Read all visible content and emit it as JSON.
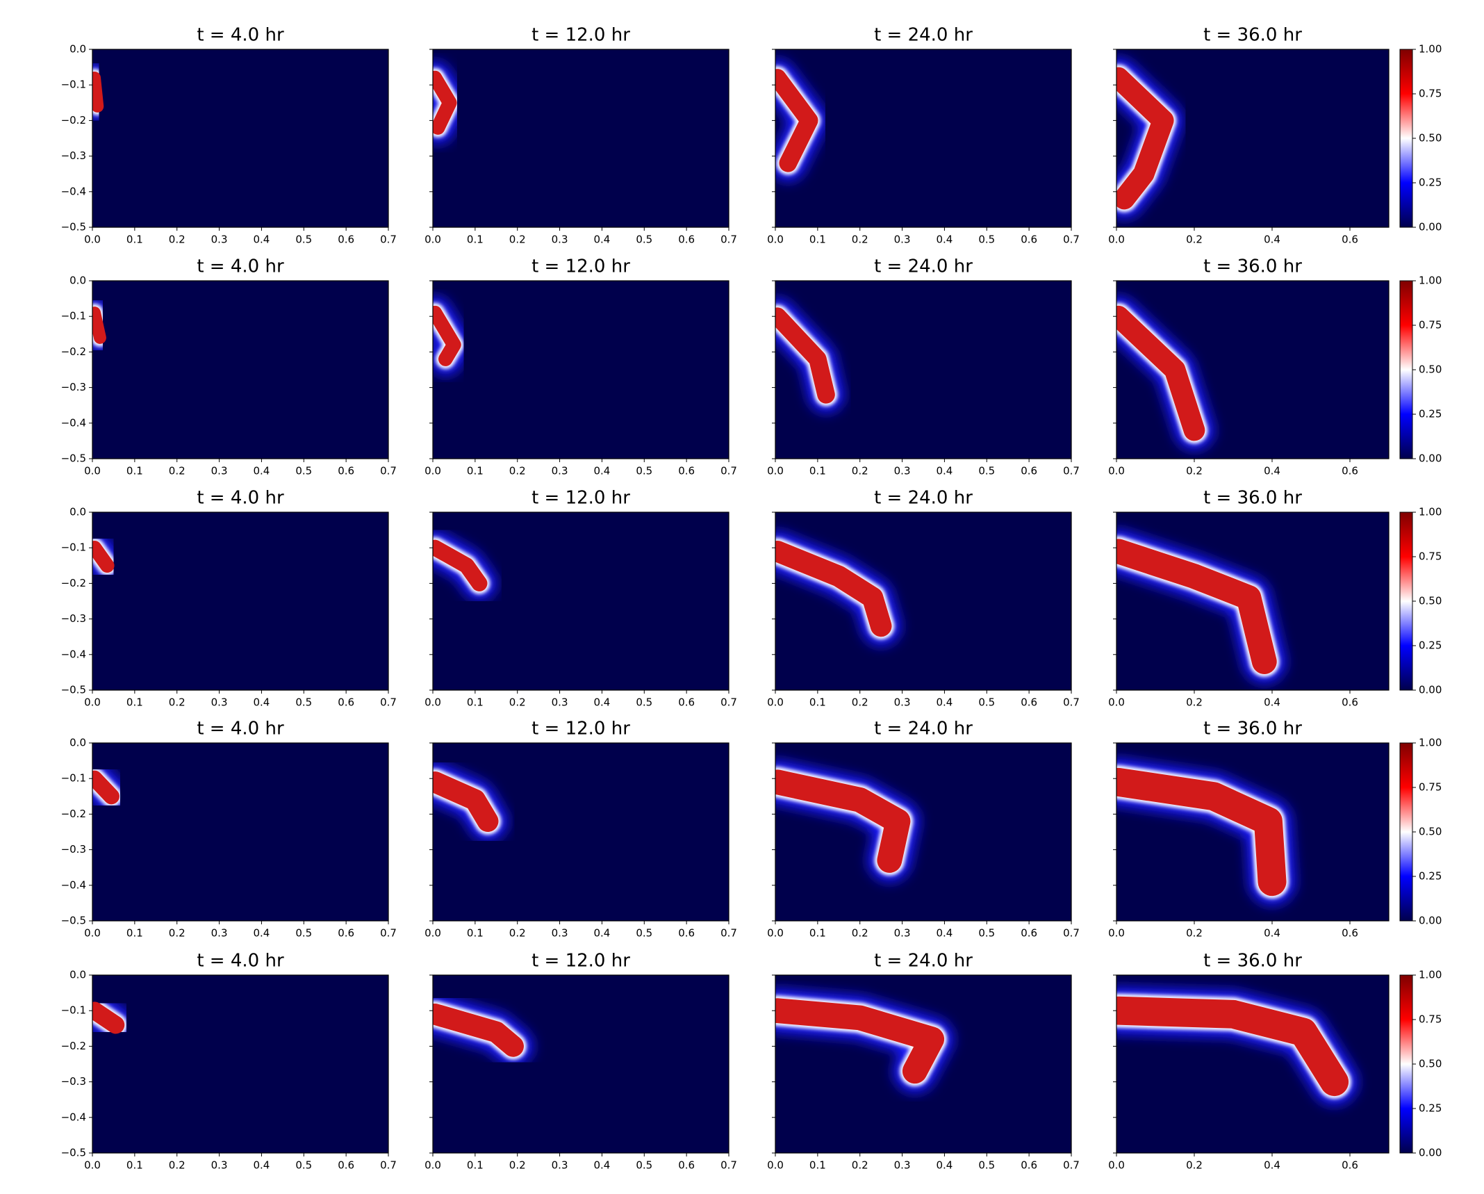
{
  "chart_data": [
    {
      "type": "heatmap",
      "title": "t = 4.0 hr",
      "xlim": [
        0,
        0.7
      ],
      "ylim": [
        -0.5,
        0
      ],
      "xticks": [
        {
          "value": 0,
          "label": "0.0"
        },
        0.1,
        0.2,
        0.3,
        0.4,
        0.5,
        0.6,
        0.7
      ],
      "yticks": [
        {
          "value": 0,
          "label": "0.0"
        },
        {
          "value": -0.1,
          "label": "−0.1"
        },
        {
          "value": -0.2,
          "label": "−0.2"
        },
        {
          "value": -0.3,
          "label": "−0.3"
        },
        {
          "value": -0.4,
          "label": "−0.4"
        },
        {
          "value": -0.5,
          "label": "−0.5"
        }
      ]
    },
    {
      "type": "heatmap",
      "title": "t = 12.0 hr",
      "xlim": [
        0,
        0.7
      ],
      "ylim": [
        -0.5,
        0
      ],
      "xticks": [
        {
          "value": 0,
          "label": "0.0"
        },
        0.1,
        0.2,
        0.3,
        0.4,
        0.5,
        0.6,
        0.7
      ],
      "yticks": [
        0,
        -0.1,
        -0.2,
        -0.3,
        -0.4,
        -0.5
      ]
    },
    {
      "type": "heatmap",
      "title": "t = 24.0 hr",
      "xlim": [
        0,
        0.7
      ],
      "ylim": [
        -0.5,
        0
      ],
      "xticks": [
        {
          "value": 0,
          "label": "0.0"
        },
        0.1,
        0.2,
        0.3,
        0.4,
        0.5,
        0.6,
        0.7
      ],
      "yticks": [
        0,
        -0.1,
        -0.2,
        -0.3,
        -0.4,
        -0.5
      ]
    },
    {
      "type": "heatmap",
      "title": "t = 36.0 hr",
      "xlim": [
        0,
        0.7
      ],
      "ylim": [
        -0.5,
        0
      ],
      "xticks": [
        {
          "value": 0,
          "label": "0.0"
        },
        0.2,
        0.4,
        0.6
      ],
      "yticks": [
        0,
        -0.1,
        -0.2,
        -0.3,
        -0.4,
        -0.5
      ],
      "colorbar": {
        "clim": [
          0,
          1
        ],
        "ticks": [
          {
            "value": 0,
            "label": "0.00"
          },
          0.25,
          {
            "value": 0.5,
            "label": "0.50"
          },
          0.75,
          {
            "value": 1,
            "label": "1.00"
          }
        ]
      }
    },
    {
      "type": "heatmap",
      "title": "t = 4.0 hr",
      "xlim": [
        0,
        0.7
      ],
      "ylim": [
        -0.5,
        0
      ],
      "xticks": [
        {
          "value": 0,
          "label": "0.0"
        },
        0.1,
        0.2,
        0.3,
        0.4,
        0.5,
        0.6,
        0.7
      ],
      "yticks": [
        {
          "value": 0,
          "label": "0.0"
        },
        {
          "value": -0.1,
          "label": "−0.1"
        },
        {
          "value": -0.2,
          "label": "−0.2"
        },
        {
          "value": -0.3,
          "label": "−0.3"
        },
        {
          "value": -0.4,
          "label": "−0.4"
        },
        {
          "value": -0.5,
          "label": "−0.5"
        }
      ]
    },
    {
      "type": "heatmap",
      "title": "t = 12.0 hr",
      "xlim": [
        0,
        0.7
      ],
      "ylim": [
        -0.5,
        0
      ],
      "xticks": [
        {
          "value": 0,
          "label": "0.0"
        },
        0.1,
        0.2,
        0.3,
        0.4,
        0.5,
        0.6,
        0.7
      ],
      "yticks": [
        0,
        -0.1,
        -0.2,
        -0.3,
        -0.4,
        -0.5
      ]
    },
    {
      "type": "heatmap",
      "title": "t = 24.0 hr",
      "xlim": [
        0,
        0.7
      ],
      "ylim": [
        -0.5,
        0
      ],
      "xticks": [
        {
          "value": 0,
          "label": "0.0"
        },
        0.1,
        0.2,
        0.3,
        0.4,
        0.5,
        0.6,
        0.7
      ],
      "yticks": [
        0,
        -0.1,
        -0.2,
        -0.3,
        -0.4,
        -0.5
      ]
    },
    {
      "type": "heatmap",
      "title": "t = 36.0 hr",
      "xlim": [
        0,
        0.7
      ],
      "ylim": [
        -0.5,
        0
      ],
      "xticks": [
        {
          "value": 0,
          "label": "0.0"
        },
        0.2,
        0.4,
        0.6
      ],
      "yticks": [
        0,
        -0.1,
        -0.2,
        -0.3,
        -0.4,
        -0.5
      ],
      "colorbar": {
        "clim": [
          0,
          1
        ],
        "ticks": [
          {
            "value": 0,
            "label": "0.00"
          },
          0.25,
          {
            "value": 0.5,
            "label": "0.50"
          },
          0.75,
          {
            "value": 1,
            "label": "1.00"
          }
        ]
      }
    },
    {
      "type": "heatmap",
      "title": "t = 4.0 hr",
      "xlim": [
        0,
        0.7
      ],
      "ylim": [
        -0.5,
        0
      ],
      "xticks": [
        {
          "value": 0,
          "label": "0.0"
        },
        0.1,
        0.2,
        0.3,
        0.4,
        0.5,
        0.6,
        0.7
      ],
      "yticks": [
        {
          "value": 0,
          "label": "0.0"
        },
        {
          "value": -0.1,
          "label": "−0.1"
        },
        {
          "value": -0.2,
          "label": "−0.2"
        },
        {
          "value": -0.3,
          "label": "−0.3"
        },
        {
          "value": -0.4,
          "label": "−0.4"
        },
        {
          "value": -0.5,
          "label": "−0.5"
        }
      ]
    },
    {
      "type": "heatmap",
      "title": "t = 12.0 hr",
      "xlim": [
        0,
        0.7
      ],
      "ylim": [
        -0.5,
        0
      ],
      "xticks": [
        {
          "value": 0,
          "label": "0.0"
        },
        0.1,
        0.2,
        0.3,
        0.4,
        0.5,
        0.6,
        0.7
      ],
      "yticks": [
        0,
        -0.1,
        -0.2,
        -0.3,
        -0.4,
        -0.5
      ]
    },
    {
      "type": "heatmap",
      "title": "t = 24.0 hr",
      "xlim": [
        0,
        0.7
      ],
      "ylim": [
        -0.5,
        0
      ],
      "xticks": [
        {
          "value": 0,
          "label": "0.0"
        },
        0.1,
        0.2,
        0.3,
        0.4,
        0.5,
        0.6,
        0.7
      ],
      "yticks": [
        0,
        -0.1,
        -0.2,
        -0.3,
        -0.4,
        -0.5
      ]
    },
    {
      "type": "heatmap",
      "title": "t = 36.0 hr",
      "xlim": [
        0,
        0.7
      ],
      "ylim": [
        -0.5,
        0
      ],
      "xticks": [
        {
          "value": 0,
          "label": "0.0"
        },
        0.2,
        0.4,
        0.6
      ],
      "yticks": [
        0,
        -0.1,
        -0.2,
        -0.3,
        -0.4,
        -0.5
      ],
      "colorbar": {
        "clim": [
          0,
          1
        ],
        "ticks": [
          {
            "value": 0,
            "label": "0.00"
          },
          0.25,
          {
            "value": 0.5,
            "label": "0.50"
          },
          0.75,
          {
            "value": 1,
            "label": "1.00"
          }
        ]
      }
    },
    {
      "type": "heatmap",
      "title": "t = 4.0 hr",
      "xlim": [
        0,
        0.7
      ],
      "ylim": [
        -0.5,
        0
      ],
      "xticks": [
        {
          "value": 0,
          "label": "0.0"
        },
        0.1,
        0.2,
        0.3,
        0.4,
        0.5,
        0.6,
        0.7
      ],
      "yticks": [
        {
          "value": 0,
          "label": "0.0"
        },
        {
          "value": -0.1,
          "label": "−0.1"
        },
        {
          "value": -0.2,
          "label": "−0.2"
        },
        {
          "value": -0.3,
          "label": "−0.3"
        },
        {
          "value": -0.4,
          "label": "−0.4"
        },
        {
          "value": -0.5,
          "label": "−0.5"
        }
      ]
    },
    {
      "type": "heatmap",
      "title": "t = 12.0 hr",
      "xlim": [
        0,
        0.7
      ],
      "ylim": [
        -0.5,
        0
      ],
      "xticks": [
        {
          "value": 0,
          "label": "0.0"
        },
        0.1,
        0.2,
        0.3,
        0.4,
        0.5,
        0.6,
        0.7
      ],
      "yticks": [
        0,
        -0.1,
        -0.2,
        -0.3,
        -0.4,
        -0.5
      ]
    },
    {
      "type": "heatmap",
      "title": "t = 24.0 hr",
      "xlim": [
        0,
        0.7
      ],
      "ylim": [
        -0.5,
        0
      ],
      "xticks": [
        {
          "value": 0,
          "label": "0.0"
        },
        0.1,
        0.2,
        0.3,
        0.4,
        0.5,
        0.6,
        0.7
      ],
      "yticks": [
        0,
        -0.1,
        -0.2,
        -0.3,
        -0.4,
        -0.5
      ]
    },
    {
      "type": "heatmap",
      "title": "t = 36.0 hr",
      "xlim": [
        0,
        0.7
      ],
      "ylim": [
        -0.5,
        0
      ],
      "xticks": [
        {
          "value": 0,
          "label": "0.0"
        },
        0.2,
        0.4,
        0.6
      ],
      "yticks": [
        0,
        -0.1,
        -0.2,
        -0.3,
        -0.4,
        -0.5
      ],
      "colorbar": {
        "clim": [
          0,
          1
        ],
        "ticks": [
          {
            "value": 0,
            "label": "0.00"
          },
          0.25,
          {
            "value": 0.5,
            "label": "0.50"
          },
          0.75,
          {
            "value": 1,
            "label": "1.00"
          }
        ]
      }
    },
    {
      "type": "heatmap",
      "title": "t = 4.0 hr",
      "xlim": [
        0,
        0.7
      ],
      "ylim": [
        -0.5,
        0
      ],
      "xticks": [
        {
          "value": 0,
          "label": "0.0"
        },
        0.1,
        0.2,
        0.3,
        0.4,
        0.5,
        0.6,
        0.7
      ],
      "yticks": [
        {
          "value": 0,
          "label": "0.0"
        },
        {
          "value": -0.1,
          "label": "−0.1"
        },
        {
          "value": -0.2,
          "label": "−0.2"
        },
        {
          "value": -0.3,
          "label": "−0.3"
        },
        {
          "value": -0.4,
          "label": "−0.4"
        },
        {
          "value": -0.5,
          "label": "−0.5"
        }
      ]
    },
    {
      "type": "heatmap",
      "title": "t = 12.0 hr",
      "xlim": [
        0,
        0.7
      ],
      "ylim": [
        -0.5,
        0
      ],
      "xticks": [
        {
          "value": 0,
          "label": "0.0"
        },
        0.1,
        0.2,
        0.3,
        0.4,
        0.5,
        0.6,
        0.7
      ],
      "yticks": [
        0,
        -0.1,
        -0.2,
        -0.3,
        -0.4,
        -0.5
      ]
    },
    {
      "type": "heatmap",
      "title": "t = 24.0 hr",
      "xlim": [
        0,
        0.7
      ],
      "ylim": [
        -0.5,
        0
      ],
      "xticks": [
        {
          "value": 0,
          "label": "0.0"
        },
        0.1,
        0.2,
        0.3,
        0.4,
        0.5,
        0.6,
        0.7
      ],
      "yticks": [
        0,
        -0.1,
        -0.2,
        -0.3,
        -0.4,
        -0.5
      ]
    },
    {
      "type": "heatmap",
      "title": "t = 36.0 hr",
      "xlim": [
        0,
        0.7
      ],
      "ylim": [
        -0.5,
        0
      ],
      "xticks": [
        {
          "value": 0,
          "label": "0.0"
        },
        0.2,
        0.4,
        0.6
      ],
      "yticks": [
        0,
        -0.1,
        -0.2,
        -0.3,
        -0.4,
        -0.5
      ],
      "colorbar": {
        "clim": [
          0,
          1
        ],
        "ticks": [
          {
            "value": 0,
            "label": "0.00"
          },
          0.25,
          {
            "value": 0.5,
            "label": "0.50"
          },
          0.75,
          {
            "value": 1,
            "label": "1.00"
          }
        ]
      }
    }
  ]
}
